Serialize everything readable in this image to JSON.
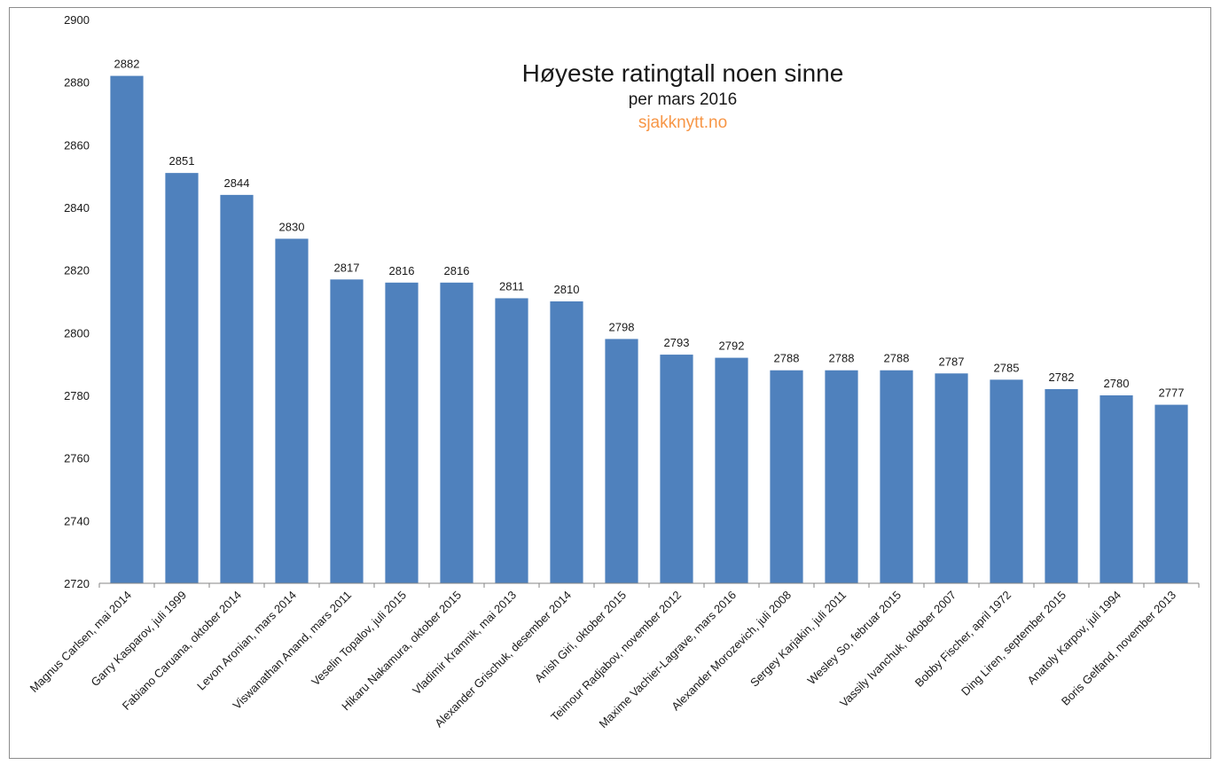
{
  "chart_data": {
    "type": "bar",
    "title": "Høyeste ratingtall noen sinne",
    "subtitle": "per mars 2016",
    "source": "sjakknytt.no",
    "xlabel": "",
    "ylabel": "",
    "ylim": [
      2720,
      2900
    ],
    "yticks": [
      2720,
      2740,
      2760,
      2780,
      2800,
      2820,
      2840,
      2860,
      2880,
      2900
    ],
    "grid": false,
    "categories": [
      "Magnus Carlsen, mai 2014",
      "Garry Kasparov, juli 1999",
      "Fabiano Caruana, oktober 2014",
      "Levon Aronian, mars 2014",
      "Viswanathan Anand, mars 2011",
      "Veselin Topalov, juli 2015",
      "Hikaru Nakamura, oktober 2015",
      "Vladimir Kramnik, mai 2013",
      "Alexander Grischuk, desember 2014",
      "Anish Giri, oktober 2015",
      "Teimour Radjabov, november 2012",
      "Maxime Vachier-Lagrave, mars 2016",
      "Alexander Morozevich, juli 2008",
      "Sergey Karjakin, juli 2011",
      "Wesley So, februar 2015",
      "Vassily Ivanchuk, oktober 2007",
      "Bobby Fischer, april 1972",
      "Ding Liren, september 2015",
      "Anatoly Karpov, juli 1994",
      "Boris Gelfand, november 2013"
    ],
    "values": [
      2882,
      2851,
      2844,
      2830,
      2817,
      2816,
      2816,
      2811,
      2810,
      2798,
      2793,
      2792,
      2788,
      2788,
      2788,
      2787,
      2785,
      2782,
      2780,
      2777
    ],
    "colors": {
      "bar": "#4f81bd",
      "source": "#f79646",
      "axis": "#868686",
      "text": "#1a1a1a"
    }
  }
}
